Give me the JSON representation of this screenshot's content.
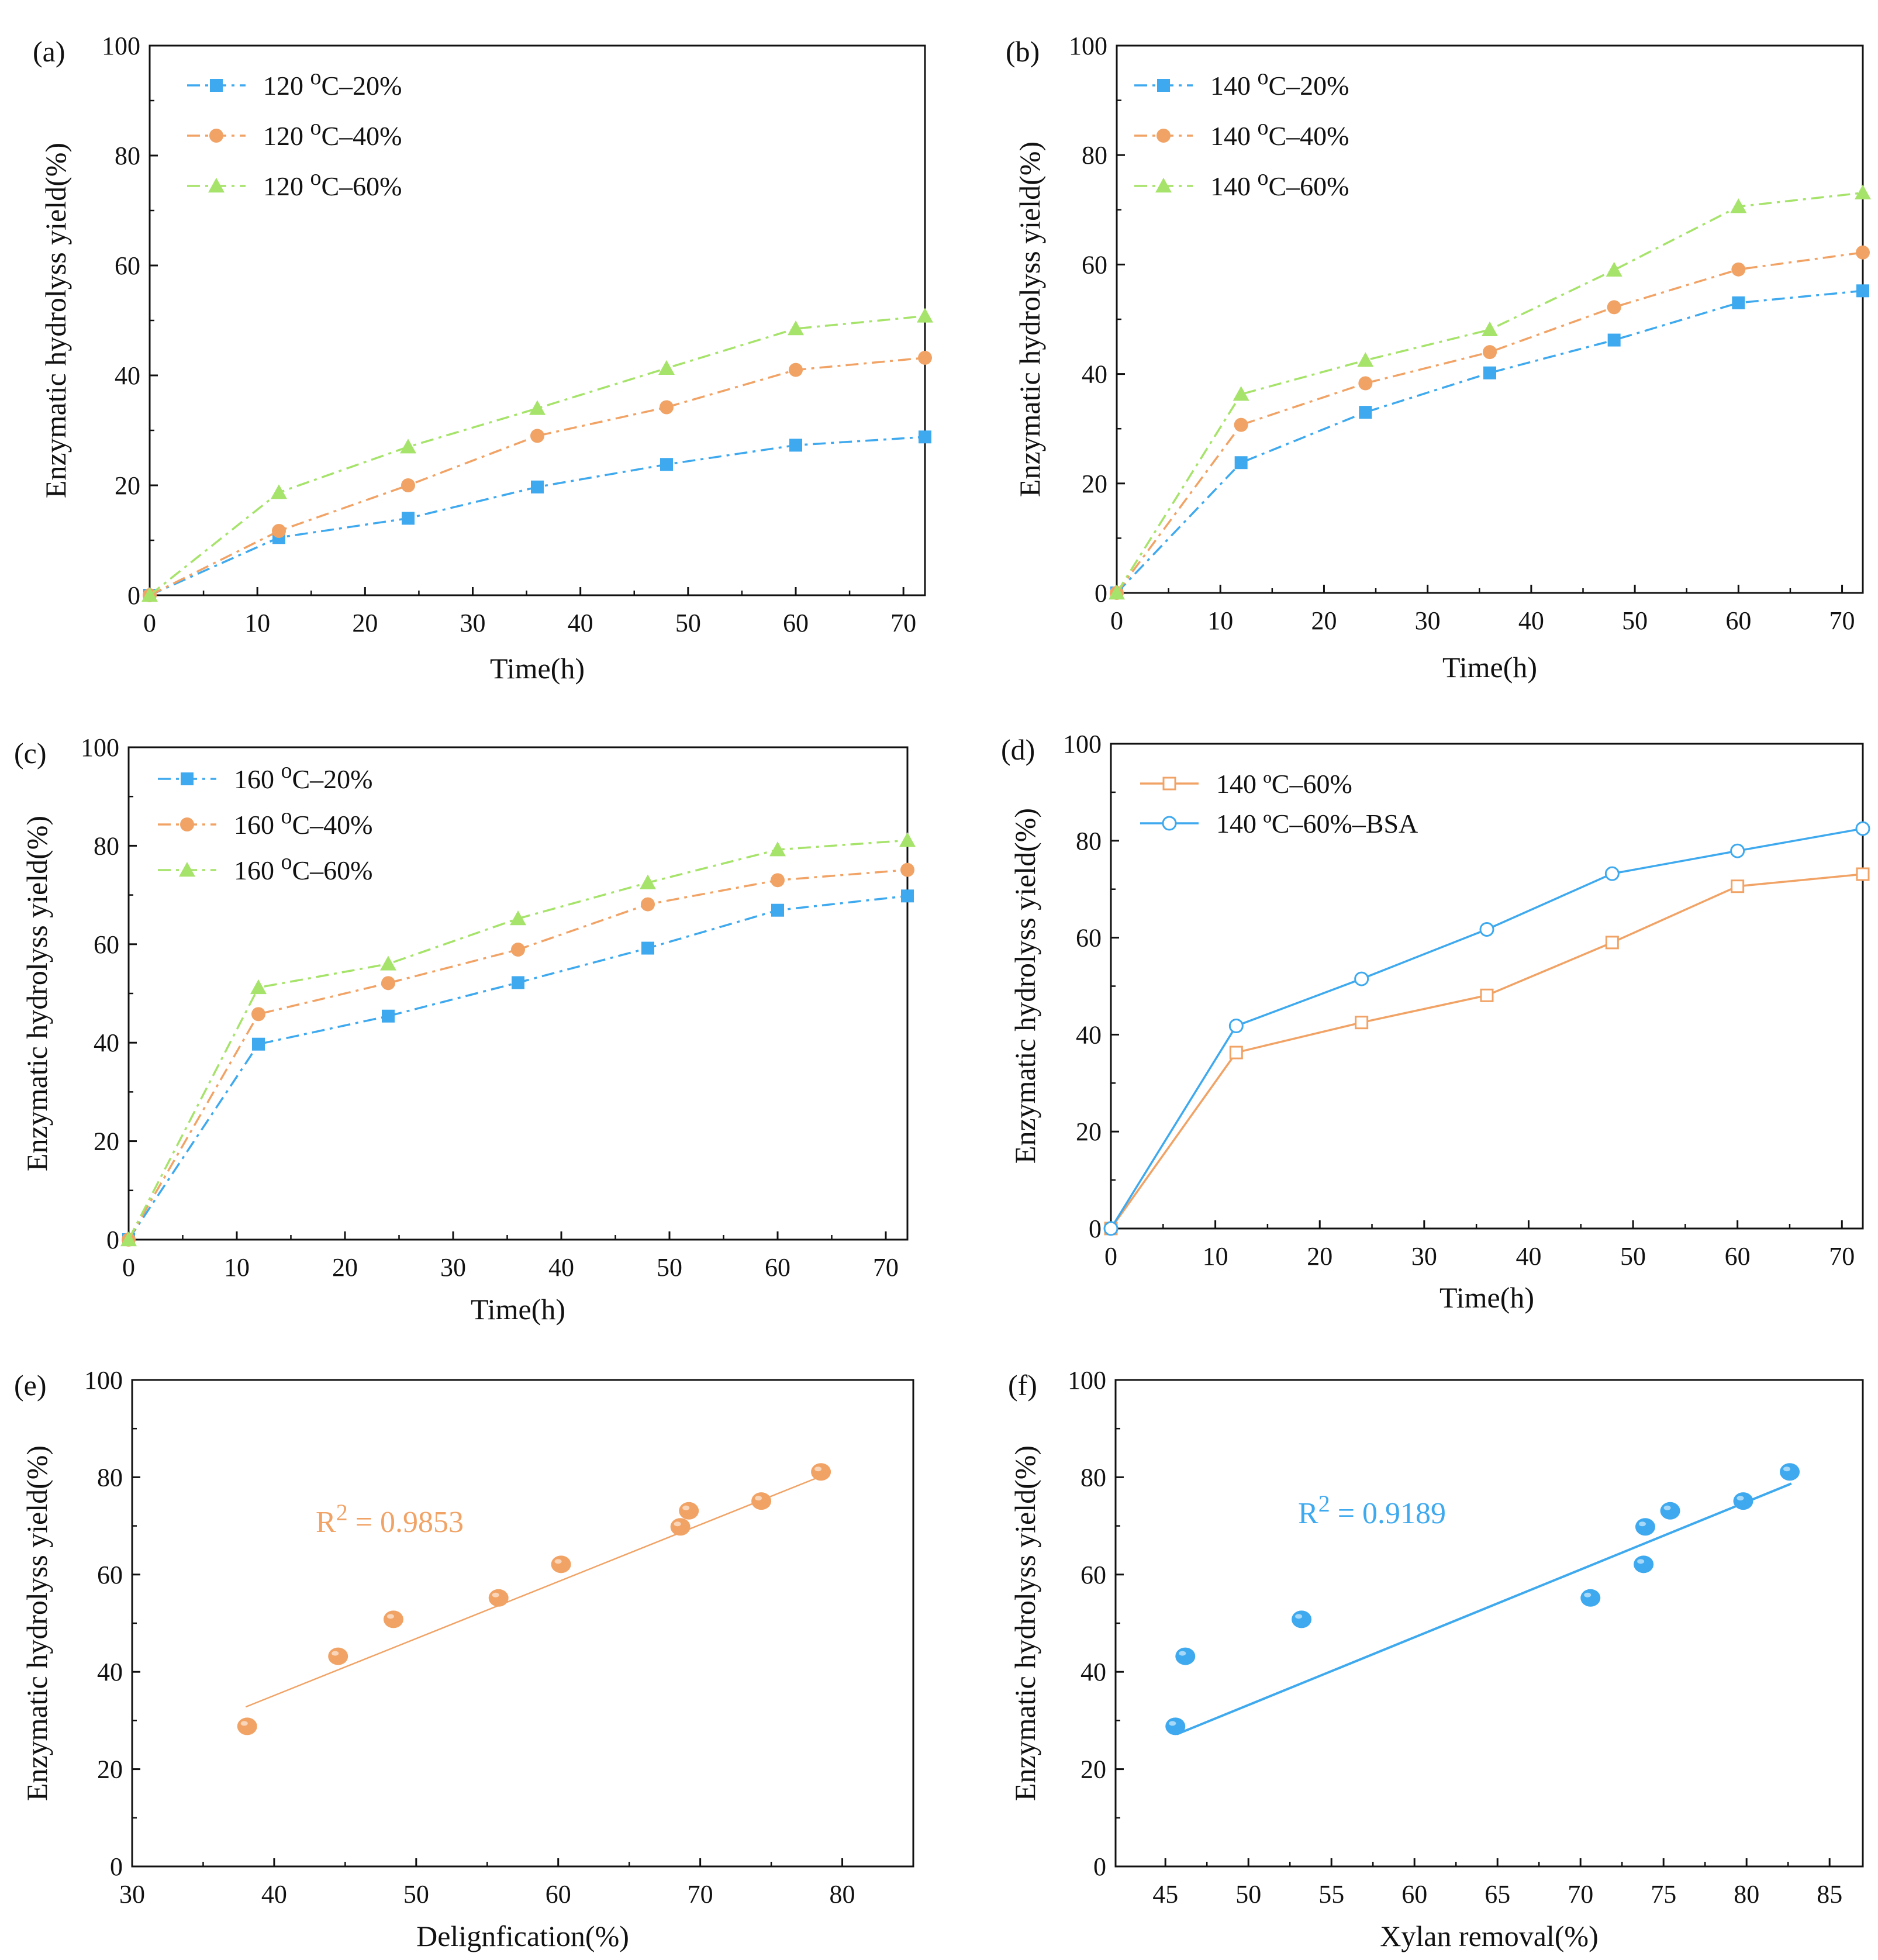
{
  "figure": {
    "colors": {
      "blue": "#3EA9EE",
      "orange": "#F1A366",
      "green": "#A6E36A",
      "axis": "#111111"
    },
    "chart_data": [
      {
        "id": "a",
        "panel_label": "(a)",
        "type": "line",
        "xlabel": "Time(h)",
        "ylabel": "Enzymatic hydrolyss yield(%)",
        "xlim": [
          0,
          72
        ],
        "ylim": [
          0,
          100
        ],
        "xticks": [
          "0",
          "10",
          "20",
          "30",
          "40",
          "50",
          "60",
          "70"
        ],
        "yticks": [
          "0",
          "20",
          "40",
          "60",
          "80",
          "100"
        ],
        "legend_position": "top-left",
        "x": [
          0,
          12,
          24,
          36,
          48,
          60,
          72
        ],
        "series": [
          {
            "name": "120 °C–20%",
            "label_main": "120 ",
            "label_sup": "o",
            "label_rest": "C–20%",
            "color_key": "blue",
            "marker": "square",
            "dash": "dashdot",
            "values": [
              0,
              10.5,
              14,
              19.7,
              23.8,
              27.3,
              28.8
            ]
          },
          {
            "name": "120 °C–40%",
            "label_main": "120 ",
            "label_sup": "o",
            "label_rest": "C–40%",
            "color_key": "orange",
            "marker": "circle",
            "dash": "dashdot",
            "values": [
              0,
              11.7,
              20,
              29,
              34.2,
              41,
              43.2
            ]
          },
          {
            "name": "120 °C–60%",
            "label_main": "120 ",
            "label_sup": "o",
            "label_rest": "C–60%",
            "color_key": "green",
            "marker": "triangle",
            "dash": "dashdot",
            "values": [
              0,
              18.7,
              27,
              34,
              41.3,
              48.5,
              50.8
            ]
          }
        ]
      },
      {
        "id": "b",
        "panel_label": "(b)",
        "type": "line",
        "xlabel": "Time(h)",
        "ylabel": "Enzymatic hydrolyss yield(%)",
        "xlim": [
          0,
          72
        ],
        "ylim": [
          0,
          100
        ],
        "xticks": [
          "0",
          "10",
          "20",
          "30",
          "40",
          "50",
          "60",
          "70"
        ],
        "yticks": [
          "0",
          "20",
          "40",
          "60",
          "80",
          "100"
        ],
        "legend_position": "top-left",
        "x": [
          0,
          12,
          24,
          36,
          48,
          60,
          72
        ],
        "series": [
          {
            "name": "140 °C–20%",
            "label_main": "140 ",
            "label_sup": "o",
            "label_rest": "C–20%",
            "color_key": "blue",
            "marker": "square",
            "dash": "dashdot",
            "values": [
              0,
              23.8,
              33,
              40.2,
              46.2,
              53,
              55.2
            ]
          },
          {
            "name": "140 °C–40%",
            "label_main": "140 ",
            "label_sup": "o",
            "label_rest": "C–40%",
            "color_key": "orange",
            "marker": "circle",
            "dash": "dashdot",
            "values": [
              0,
              30.7,
              38.3,
              44,
              52.2,
              59.1,
              62.2
            ]
          },
          {
            "name": "140 °C–60%",
            "label_main": "140 ",
            "label_sup": "o",
            "label_rest": "C–60%",
            "color_key": "green",
            "marker": "triangle",
            "dash": "dashdot",
            "values": [
              0,
              36.3,
              42.5,
              48.1,
              59,
              70.6,
              73.1
            ]
          }
        ]
      },
      {
        "id": "c",
        "panel_label": "(c)",
        "type": "line",
        "xlabel": "Time(h)",
        "ylabel": "Enzymatic hydrolyss yield(%)",
        "xlim": [
          0,
          72
        ],
        "ylim": [
          0,
          100
        ],
        "xticks": [
          "0",
          "10",
          "20",
          "30",
          "40",
          "50",
          "60",
          "70"
        ],
        "yticks": [
          "0",
          "20",
          "40",
          "60",
          "80",
          "100"
        ],
        "legend_position": "top-left",
        "x": [
          0,
          12,
          24,
          36,
          48,
          60,
          72
        ],
        "series": [
          {
            "name": "160 °C–20%",
            "label_main": "160 ",
            "label_sup": "o",
            "label_rest": "C–20%",
            "color_key": "blue",
            "marker": "square",
            "dash": "dashdot",
            "values": [
              0,
              39.7,
              45.4,
              52.2,
              59.2,
              66.9,
              69.8
            ]
          },
          {
            "name": "160 °C–40%",
            "label_main": "160 ",
            "label_sup": "o",
            "label_rest": "C–40%",
            "color_key": "orange",
            "marker": "circle",
            "dash": "dashdot",
            "values": [
              0,
              45.8,
              52.1,
              58.9,
              68.1,
              73,
              75.1
            ]
          },
          {
            "name": "160 °C–60%",
            "label_main": "160 ",
            "label_sup": "o",
            "label_rest": "C–60%",
            "color_key": "green",
            "marker": "triangle",
            "dash": "dashdot",
            "values": [
              0,
              51.2,
              56,
              65.2,
              72.5,
              79.2,
              81.1
            ]
          }
        ]
      },
      {
        "id": "d",
        "panel_label": "(d)",
        "type": "line",
        "xlabel": "Time(h)",
        "ylabel": "Enzymatic hydrolyss yield(%)",
        "xlim": [
          0,
          72
        ],
        "ylim": [
          0,
          100
        ],
        "xticks": [
          "0",
          "10",
          "20",
          "30",
          "40",
          "50",
          "60",
          "70"
        ],
        "yticks": [
          "0",
          "20",
          "40",
          "60",
          "80",
          "100"
        ],
        "legend_position": "top-left",
        "x": [
          0,
          12,
          24,
          36,
          48,
          60,
          72
        ],
        "series": [
          {
            "name": "140 °C–60%",
            "label_main": "140 ",
            "label_sup": "",
            "label_rest": "ºC–60%",
            "color_key": "orange",
            "marker": "open-square",
            "dash": "solid",
            "values": [
              0,
              36.3,
              42.5,
              48.1,
              59,
              70.6,
              73.1
            ]
          },
          {
            "name": "140 °C–60%–BSA",
            "label_main": "140 ",
            "label_sup": "",
            "label_rest": "ºC–60%–BSA",
            "color_key": "blue",
            "marker": "open-circle",
            "dash": "solid",
            "values": [
              0,
              41.8,
              51.5,
              61.7,
              73.2,
              77.9,
              82.5
            ]
          }
        ]
      },
      {
        "id": "e",
        "panel_label": "(e)",
        "type": "scatter",
        "xlabel": "Delignfication(%)",
        "ylabel": "Enzymatic hydrolyss yield(%)",
        "xlim": [
          30,
          85
        ],
        "ylim": [
          0,
          100
        ],
        "xticks": [
          "30",
          "40",
          "50",
          "60",
          "70",
          "80"
        ],
        "yticks": [
          "0",
          "20",
          "40",
          "60",
          "80",
          "100"
        ],
        "color_key": "orange",
        "annotation": {
          "prefix": "R",
          "sup": "2",
          "rest": " = 0.9853"
        },
        "fit_line": {
          "x": [
            38,
            78.5
          ],
          "y": [
            32.8,
            80.2
          ]
        },
        "points_x": [
          38.1,
          44.5,
          48.4,
          55.8,
          60.2,
          68.6,
          69.2,
          74.3,
          78.5
        ],
        "points_y": [
          28.8,
          43.2,
          50.8,
          55.2,
          62.1,
          69.8,
          73.1,
          75.1,
          81.1
        ]
      },
      {
        "id": "f",
        "panel_label": "(f)",
        "type": "scatter",
        "xlabel": "Xylan removal(%)",
        "ylabel": "Enzymatic hydrolyss yield(%)",
        "xlim": [
          42,
          87
        ],
        "ylim": [
          0,
          100
        ],
        "xticks": [
          "45",
          "50",
          "55",
          "60",
          "65",
          "70",
          "75",
          "80",
          "85"
        ],
        "yticks": [
          "0",
          "20",
          "40",
          "60",
          "80",
          "100"
        ],
        "color_key": "blue",
        "annotation": {
          "prefix": "R",
          "sup": "2",
          "rest": " = 0.9189"
        },
        "fit_line": {
          "x": [
            45.7,
            82.7
          ],
          "y": [
            27.2,
            78.7
          ]
        },
        "points_x": [
          45.6,
          46.2,
          53.2,
          70.6,
          73.8,
          73.9,
          75.4,
          79.8,
          82.6
        ],
        "points_y": [
          28.8,
          43.2,
          50.8,
          55.2,
          62.1,
          69.8,
          73.1,
          75.1,
          81.1
        ]
      }
    ]
  }
}
